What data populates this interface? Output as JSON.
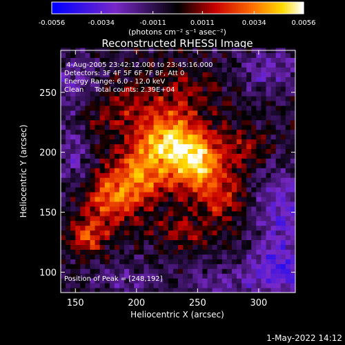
{
  "chart_data": {
    "type": "heatmap",
    "title": "Reconstructed RHESSI Image",
    "xlabel": "Heliocentric X (arcsec)",
    "ylabel": "Heliocentric Y (arcsec)",
    "xlim": [
      138,
      330
    ],
    "ylim": [
      83,
      285
    ],
    "x_ticks": [
      150,
      200,
      250,
      300
    ],
    "y_ticks": [
      100,
      150,
      200,
      250
    ],
    "colorbar": {
      "range": [
        -0.0056,
        0.0056
      ],
      "tick_values": [
        -0.0056,
        -0.0034,
        -0.0011,
        0.0011,
        0.0034,
        0.0056
      ],
      "tick_labels": [
        "-0.0056",
        "-0.0034",
        "-0.0011",
        "0.0011",
        "0.0034",
        "0.0056"
      ],
      "units_label": "(photons cm⁻² s⁻¹ asec⁻²)"
    },
    "info_lines": [
      " 4-Aug-2005 23:42:12.000 to 23:45:16.000",
      "Detectors: 3F 4F 5F 6F 7F 8F, Att 0",
      "Energy Range: 6.0 - 12.0 keV",
      "Clean     Total counts: 2.39E+04"
    ],
    "peak_label": "Position of Peak = [248,192]",
    "peak": {
      "x": 248,
      "y": 192,
      "value": 0.0056
    },
    "blobs": [
      {
        "x": 248,
        "y": 192,
        "sx": 14,
        "sy": 16,
        "a": 0.005
      },
      {
        "x": 230,
        "y": 215,
        "sx": 16,
        "sy": 14,
        "a": 0.003
      },
      {
        "x": 215,
        "y": 200,
        "sx": 18,
        "sy": 18,
        "a": 0.003
      },
      {
        "x": 200,
        "y": 175,
        "sx": 16,
        "sy": 16,
        "a": 0.0028
      },
      {
        "x": 178,
        "y": 160,
        "sx": 14,
        "sy": 16,
        "a": 0.0032
      },
      {
        "x": 160,
        "y": 130,
        "sx": 10,
        "sy": 10,
        "a": 0.003
      },
      {
        "x": 270,
        "y": 165,
        "sx": 14,
        "sy": 16,
        "a": 0.0024
      },
      {
        "x": 285,
        "y": 205,
        "sx": 16,
        "sy": 12,
        "a": 0.0018
      },
      {
        "x": 240,
        "y": 250,
        "sx": 20,
        "sy": 14,
        "a": 0.0016
      },
      {
        "x": 195,
        "y": 240,
        "sx": 18,
        "sy": 14,
        "a": 0.0014
      },
      {
        "x": 240,
        "y": 135,
        "sx": 18,
        "sy": 12,
        "a": 0.0014
      },
      {
        "x": 165,
        "y": 230,
        "sx": 14,
        "sy": 14,
        "a": 0.001
      },
      {
        "x": 318,
        "y": 100,
        "sx": 22,
        "sy": 14,
        "a": -0.0028
      },
      {
        "x": 318,
        "y": 150,
        "sx": 16,
        "sy": 26,
        "a": -0.0024
      },
      {
        "x": 310,
        "y": 270,
        "sx": 18,
        "sy": 14,
        "a": -0.002
      },
      {
        "x": 150,
        "y": 258,
        "sx": 14,
        "sy": 16,
        "a": -0.0018
      },
      {
        "x": 150,
        "y": 200,
        "sx": 10,
        "sy": 20,
        "a": -0.0016
      },
      {
        "x": 190,
        "y": 95,
        "sx": 22,
        "sy": 10,
        "a": -0.0012
      },
      {
        "x": 265,
        "y": 92,
        "sx": 20,
        "sy": 10,
        "a": -0.0014
      }
    ],
    "background": -0.0006
  },
  "footer_timestamp": "1-May-2022 14:12"
}
